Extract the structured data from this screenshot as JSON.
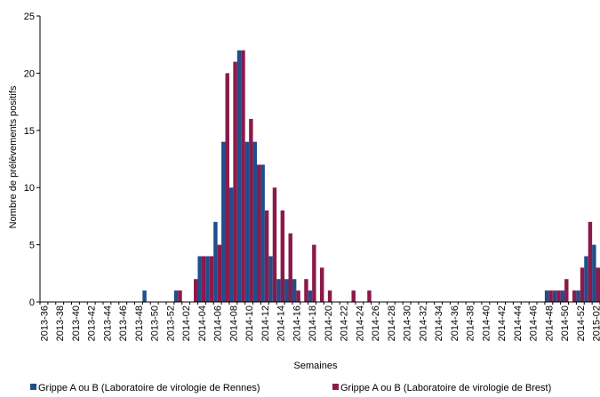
{
  "chart_data": {
    "type": "bar",
    "title": "",
    "xlabel": "Semaines",
    "ylabel": "Nombre de prélèvements positifs",
    "ylim": [
      0,
      25
    ],
    "yticks": [
      0,
      5,
      10,
      15,
      20,
      25
    ],
    "grid": false,
    "legend_position": "bottom",
    "categories": [
      "2013-36",
      "2013-37",
      "2013-38",
      "2013-39",
      "2013-40",
      "2013-41",
      "2013-42",
      "2013-43",
      "2013-44",
      "2013-45",
      "2013-46",
      "2013-47",
      "2013-48",
      "2013-49",
      "2013-50",
      "2013-51",
      "2013-52",
      "2014-01",
      "2014-02",
      "2014-03",
      "2014-04",
      "2014-05",
      "2014-06",
      "2014-07",
      "2014-08",
      "2014-09",
      "2014-10",
      "2014-11",
      "2014-12",
      "2014-13",
      "2014-14",
      "2014-15",
      "2014-16",
      "2014-17",
      "2014-18",
      "2014-19",
      "2014-20",
      "2014-21",
      "2014-22",
      "2014-23",
      "2014-24",
      "2014-25",
      "2014-26",
      "2014-27",
      "2014-28",
      "2014-29",
      "2014-30",
      "2014-31",
      "2014-32",
      "2014-33",
      "2014-34",
      "2014-35",
      "2014-36",
      "2014-37",
      "2014-38",
      "2014-39",
      "2014-40",
      "2014-41",
      "2014-42",
      "2014-43",
      "2014-44",
      "2014-45",
      "2014-46",
      "2014-47",
      "2014-48",
      "2014-49",
      "2014-50",
      "2014-51",
      "2014-52",
      "2015-01",
      "2015-02"
    ],
    "tick_labels": [
      "2013-36",
      "2013-38",
      "2013-40",
      "2013-42",
      "2013-44",
      "2013-46",
      "2013-48",
      "2013-50",
      "2013-52",
      "2014-02",
      "2014-04",
      "2014-06",
      "2014-08",
      "2014-10",
      "2014-12",
      "2014-14",
      "2014-16",
      "2014-18",
      "2014-20",
      "2014-22",
      "2014-24",
      "2014-26",
      "2014-28",
      "2014-30",
      "2014-32",
      "2014-34",
      "2014-36",
      "2014-38",
      "2014-40",
      "2014-42",
      "2014-44",
      "2014-46",
      "2014-48",
      "2014-50",
      "2014-52",
      "2015-02"
    ],
    "series": [
      {
        "name": "Grippe A ou B (Laboratoire de virologie de Rennes)",
        "color": "#1f4e8c",
        "values": [
          0,
          0,
          0,
          0,
          0,
          0,
          0,
          0,
          0,
          0,
          0,
          0,
          0,
          1,
          0,
          0,
          0,
          1,
          0,
          0,
          4,
          4,
          7,
          14,
          10,
          22,
          14,
          14,
          12,
          4,
          2,
          2,
          2,
          0,
          1,
          0,
          0,
          0,
          0,
          0,
          0,
          0,
          0,
          0,
          0,
          0,
          0,
          0,
          0,
          0,
          0,
          0,
          0,
          0,
          0,
          0,
          0,
          0,
          0,
          0,
          0,
          0,
          0,
          0,
          1,
          1,
          1,
          0,
          1,
          4,
          5
        ]
      },
      {
        "name": "Grippe A ou B (Laboratoire de virologie de Brest)",
        "color": "#8b1a4a",
        "values": [
          0,
          0,
          0,
          0,
          0,
          0,
          0,
          0,
          0,
          0,
          0,
          0,
          0,
          0,
          0,
          0,
          0,
          1,
          0,
          2,
          4,
          4,
          5,
          20,
          21,
          22,
          16,
          12,
          8,
          10,
          8,
          6,
          1,
          2,
          5,
          3,
          1,
          0,
          0,
          1,
          0,
          1,
          0,
          0,
          0,
          0,
          0,
          0,
          0,
          0,
          0,
          0,
          0,
          0,
          0,
          0,
          0,
          0,
          0,
          0,
          0,
          0,
          0,
          0,
          1,
          1,
          2,
          1,
          3,
          7,
          3
        ]
      }
    ]
  }
}
